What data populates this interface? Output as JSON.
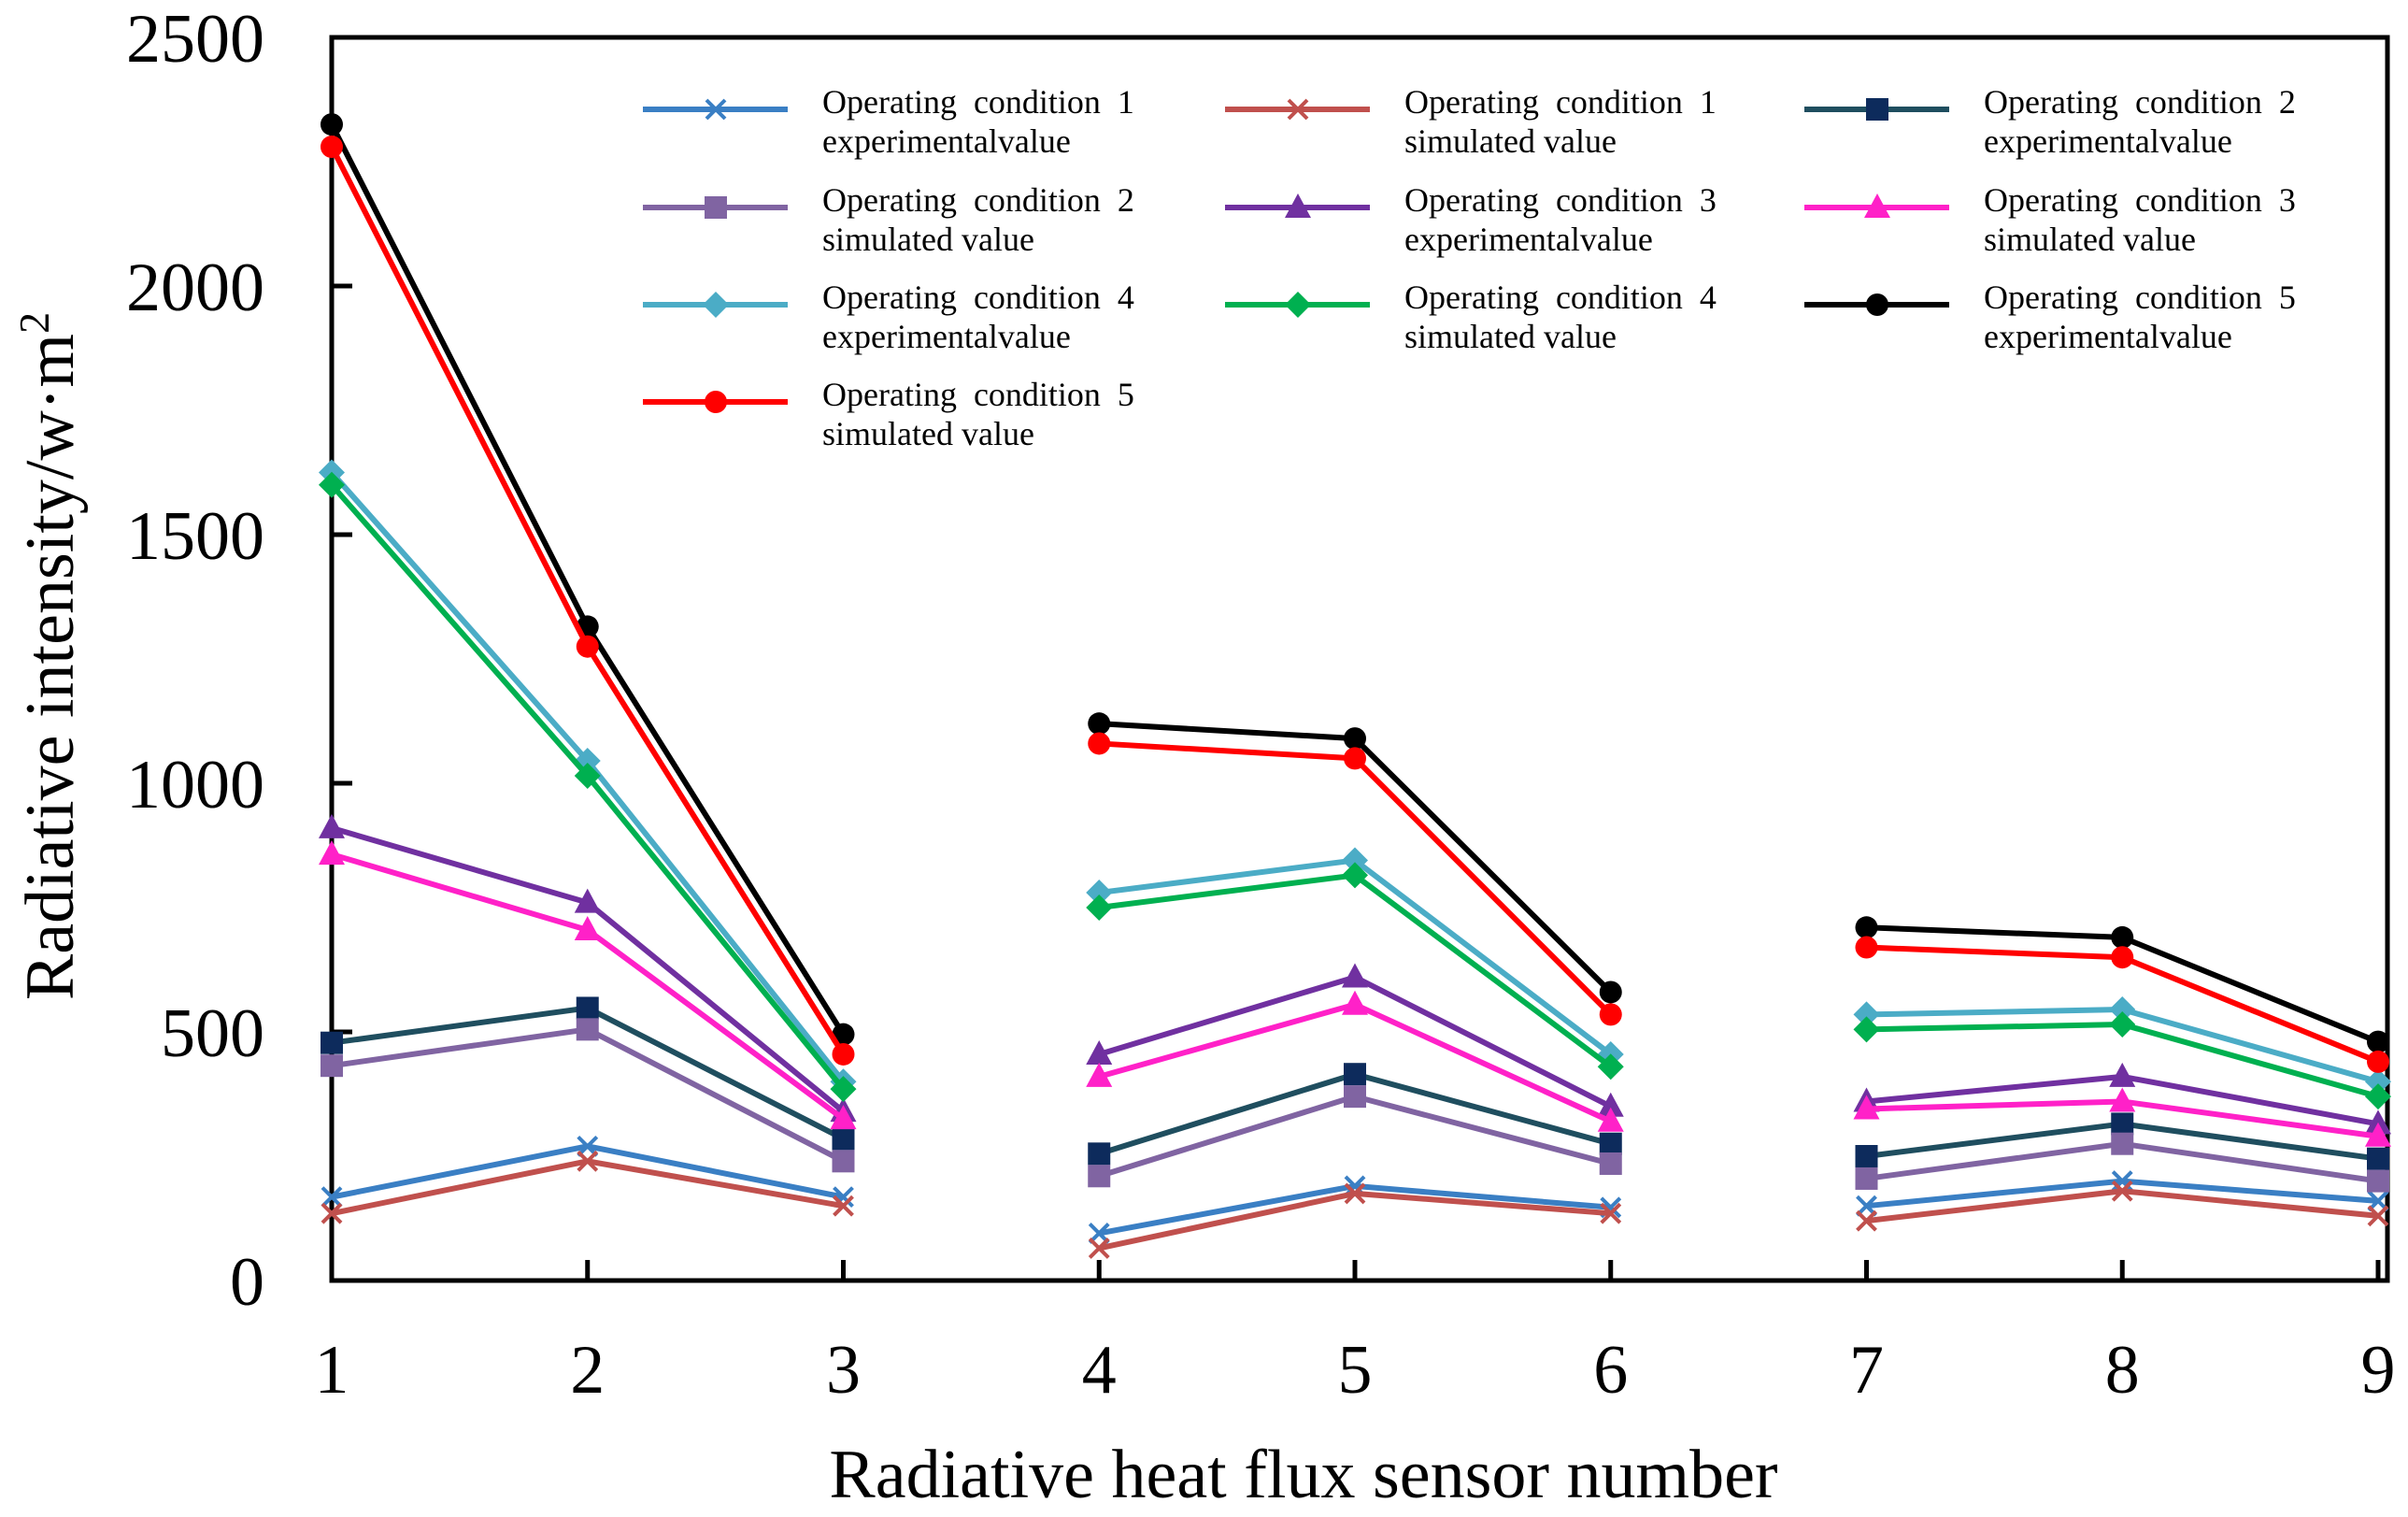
{
  "chart_data": {
    "type": "line",
    "title": "",
    "xlabel": "Radiative heat flux sensor number",
    "ylabel": "Radiative intensity/w·m",
    "ylabel_superscript": "2",
    "ylim": [
      0,
      2500
    ],
    "yticks": [
      "0",
      "500",
      "1000",
      "1500",
      "2000",
      "2500"
    ],
    "categories": [
      "1",
      "2",
      "3",
      "4",
      "5",
      "6",
      "7",
      "8",
      "9"
    ],
    "segments": [
      [
        0,
        2
      ],
      [
        3,
        5
      ],
      [
        6,
        8
      ]
    ],
    "grid": false,
    "legend_position": "top",
    "series": [
      {
        "name": "Operating condition 1 experimentalvalue",
        "color": "#3a7fc4",
        "marker": "x",
        "values": [
          168,
          270,
          168,
          95,
          190,
          147,
          150,
          200,
          160
        ]
      },
      {
        "name": "Operating condition 1 simulated value",
        "color": "#c0504d",
        "marker": "x",
        "values": [
          135,
          240,
          150,
          65,
          175,
          135,
          120,
          180,
          130
        ]
      },
      {
        "name": "Operating condition 2 experimentalvalue",
        "color": "#1f4e5f",
        "marker": "square",
        "marker_color": "#0d2b5c",
        "values": [
          478,
          548,
          285,
          255,
          415,
          275,
          250,
          315,
          245
        ]
      },
      {
        "name": "Operating condition 2 simulated value",
        "color": "#8064a2",
        "marker": "square",
        "values": [
          432,
          505,
          240,
          210,
          370,
          235,
          205,
          275,
          200
        ]
      },
      {
        "name": "Operating condition 3 experimentalvalue",
        "color": "#7030a0",
        "marker": "triangle",
        "values": [
          910,
          760,
          340,
          455,
          610,
          350,
          360,
          410,
          315
        ]
      },
      {
        "name": "Operating condition 3 simulated value",
        "color": "#ff21c8",
        "marker": "triangle",
        "values": [
          857,
          705,
          325,
          410,
          555,
          320,
          345,
          360,
          290
        ]
      },
      {
        "name": "Operating condition 4 experimentalvalue",
        "color": "#4bacc6",
        "marker": "diamond",
        "values": [
          1625,
          1045,
          400,
          780,
          845,
          455,
          535,
          545,
          400
        ]
      },
      {
        "name": "Operating condition 4 simulated value",
        "color": "#00b050",
        "marker": "diamond",
        "values": [
          1600,
          1015,
          385,
          750,
          815,
          430,
          505,
          515,
          370
        ]
      },
      {
        "name": "Operating condition 5 experimentalvalue",
        "color": "#000000",
        "marker": "circle",
        "values": [
          2325,
          1315,
          495,
          1120,
          1090,
          580,
          710,
          690,
          480
        ]
      },
      {
        "name": "Operating condition 5 simulated value",
        "color": "#ff0000",
        "marker": "circle",
        "values": [
          2280,
          1275,
          455,
          1080,
          1050,
          535,
          670,
          650,
          440
        ]
      }
    ],
    "legend": [
      {
        "line1": "Operating  condition  1",
        "line2": "experimentalvalue"
      },
      {
        "line1": "Operating  condition  1",
        "line2": "simulated value"
      },
      {
        "line1": "Operating  condition  2",
        "line2": "experimentalvalue"
      },
      {
        "line1": "Operating  condition  2",
        "line2": "simulated value"
      },
      {
        "line1": "Operating  condition  3",
        "line2": "experimentalvalue"
      },
      {
        "line1": "Operating  condition  3",
        "line2": "simulated value"
      },
      {
        "line1": "Operating  condition  4",
        "line2": "experimentalvalue"
      },
      {
        "line1": "Operating  condition  4",
        "line2": "simulated value"
      },
      {
        "line1": "Operating  condition  5",
        "line2": "experimentalvalue"
      },
      {
        "line1": "Operating  condition  5",
        "line2": "simulated value"
      }
    ]
  }
}
